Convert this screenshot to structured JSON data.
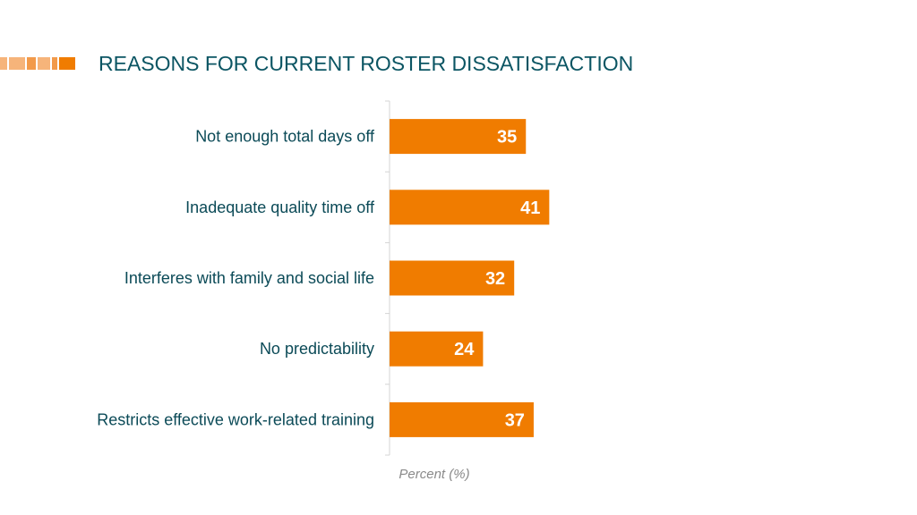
{
  "title": "REASONS FOR CURRENT ROSTER DISSATISFACTION",
  "colors": {
    "bar": "#f07c00",
    "title": "#0b5563",
    "axis": "#d4d4d4",
    "accent_light": "#f6b47a",
    "accent": "#f07c00"
  },
  "chart_data": {
    "type": "bar",
    "orientation": "horizontal",
    "categories": [
      "Not enough total days off",
      "Inadequate quality time off",
      "Interferes with family and social life",
      "No predictability",
      "Restricts effective work-related training"
    ],
    "values": [
      35,
      41,
      32,
      24,
      37
    ],
    "data_labels": [
      "35",
      "41",
      "32",
      "24",
      "37"
    ],
    "xlabel": "Percent (%)",
    "ylabel": "",
    "xlim": [
      0,
      100
    ],
    "grid": false,
    "legend": "none"
  }
}
